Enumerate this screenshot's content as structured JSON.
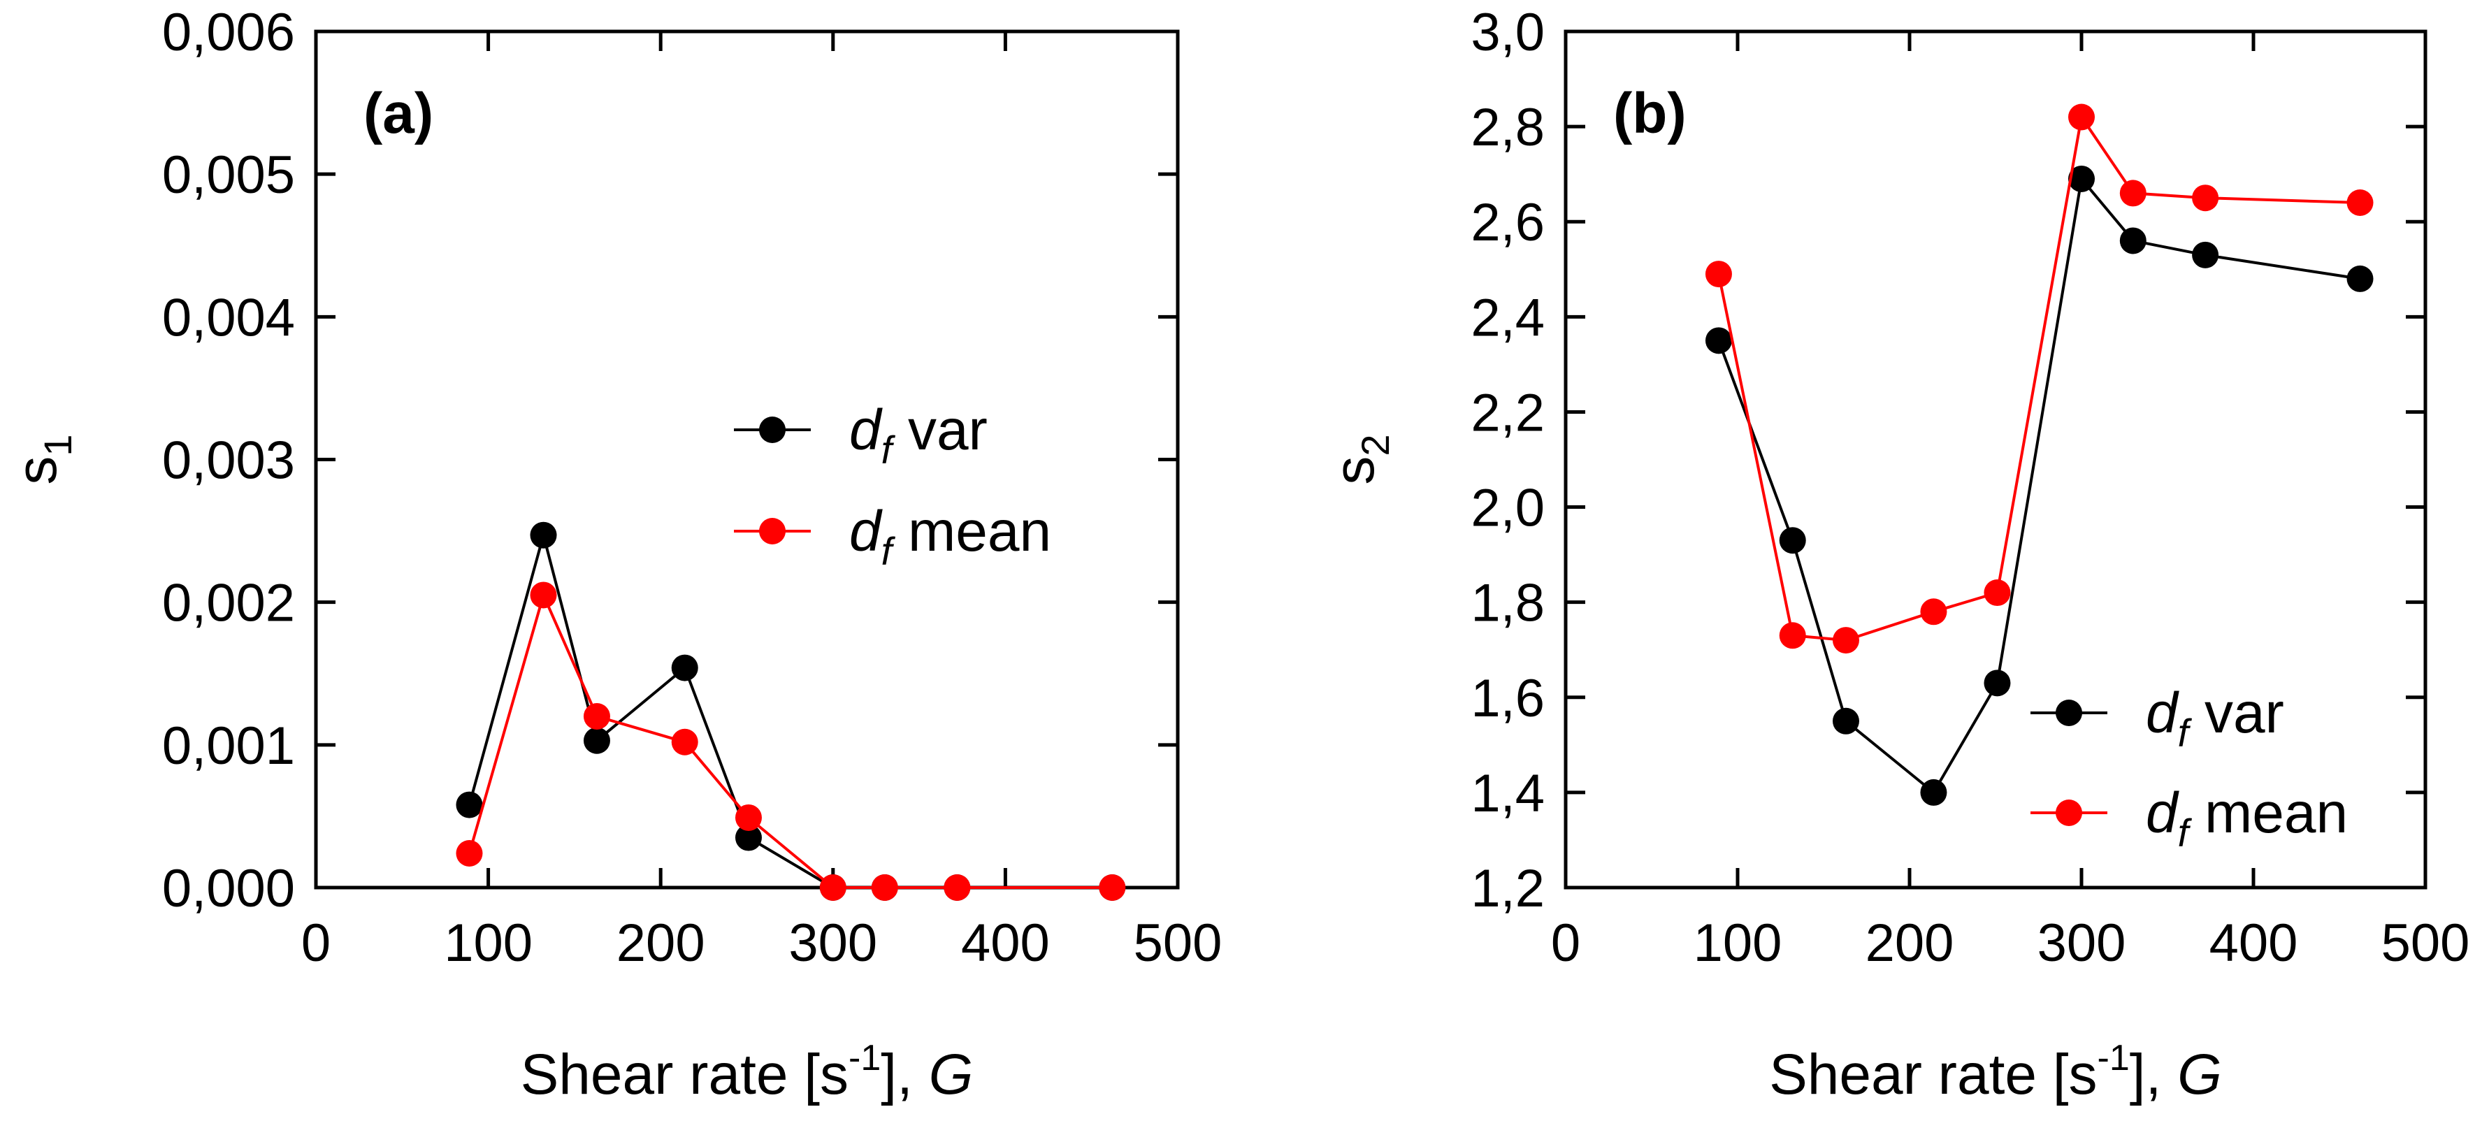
{
  "chart_data": [
    {
      "type": "line",
      "panel": "(a)",
      "xlabel": "Shear rate [s-1], G",
      "xlabel_parts": {
        "main": "Shear rate [s",
        "sup": "-1",
        "close": "], ",
        "italic": "G"
      },
      "ylabel": "s1",
      "ylabel_parts": {
        "main": "s",
        "sub": "1"
      },
      "xlim": [
        0,
        500
      ],
      "ylim": [
        0,
        0.006
      ],
      "xticks": [
        0,
        100,
        200,
        300,
        400,
        500
      ],
      "xtick_labels": [
        "0",
        "100",
        "200",
        "300",
        "400",
        "500"
      ],
      "yticks": [
        0,
        0.001,
        0.002,
        0.003,
        0.004,
        0.005,
        0.006
      ],
      "ytick_labels": [
        "0,000",
        "0,001",
        "0,002",
        "0,003",
        "0,004",
        "0,005",
        "0,006"
      ],
      "grid": false,
      "legend_position": "center-right",
      "series": [
        {
          "name": "df var",
          "name_parts": {
            "main": "d",
            "sub": "f",
            "rest": " var"
          },
          "color": "#000000",
          "x": [
            89,
            132,
            163,
            214,
            251,
            300,
            330,
            372,
            462
          ],
          "y": [
            0.00058,
            0.00247,
            0.00103,
            0.00154,
            0.00035,
            0.0,
            0.0,
            0.0,
            0.0
          ]
        },
        {
          "name": "df mean",
          "name_parts": {
            "main": "d",
            "sub": "f",
            "rest": " mean"
          },
          "color": "#ff0000",
          "x": [
            89,
            132,
            163,
            214,
            251,
            300,
            330,
            372,
            462
          ],
          "y": [
            0.00024,
            0.00205,
            0.0012,
            0.00102,
            0.00049,
            0.0,
            0.0,
            0.0,
            0.0
          ]
        }
      ]
    },
    {
      "type": "line",
      "panel": "(b)",
      "xlabel": "Shear rate [s-1], G",
      "xlabel_parts": {
        "main": "Shear rate [s",
        "sup": "-1",
        "close": "], ",
        "italic": "G"
      },
      "ylabel": "s2",
      "ylabel_parts": {
        "main": "s",
        "sub": "2"
      },
      "xlim": [
        0,
        500
      ],
      "ylim": [
        1.2,
        3.0
      ],
      "xticks": [
        0,
        100,
        200,
        300,
        400,
        500
      ],
      "xtick_labels": [
        "0",
        "100",
        "200",
        "300",
        "400",
        "500"
      ],
      "yticks": [
        1.2,
        1.4,
        1.6,
        1.8,
        2.0,
        2.2,
        2.4,
        2.6,
        2.8,
        3.0
      ],
      "ytick_labels": [
        "1,2",
        "1,4",
        "1,6",
        "1,8",
        "2,0",
        "2,2",
        "2,4",
        "2,6",
        "2,8",
        "3,0"
      ],
      "grid": false,
      "legend_position": "bottom-right",
      "series": [
        {
          "name": "df var",
          "name_parts": {
            "main": "d",
            "sub": "f",
            "rest": " var"
          },
          "color": "#000000",
          "x": [
            89,
            132,
            163,
            214,
            251,
            300,
            330,
            372,
            462
          ],
          "y": [
            2.35,
            1.93,
            1.55,
            1.4,
            1.63,
            2.69,
            2.56,
            2.53,
            2.48
          ]
        },
        {
          "name": "df mean",
          "name_parts": {
            "main": "d",
            "sub": "f",
            "rest": " mean"
          },
          "color": "#ff0000",
          "x": [
            89,
            132,
            163,
            214,
            251,
            300,
            330,
            372,
            462
          ],
          "y": [
            2.49,
            1.73,
            1.72,
            1.78,
            1.82,
            2.82,
            2.66,
            2.65,
            2.64
          ]
        }
      ]
    }
  ]
}
